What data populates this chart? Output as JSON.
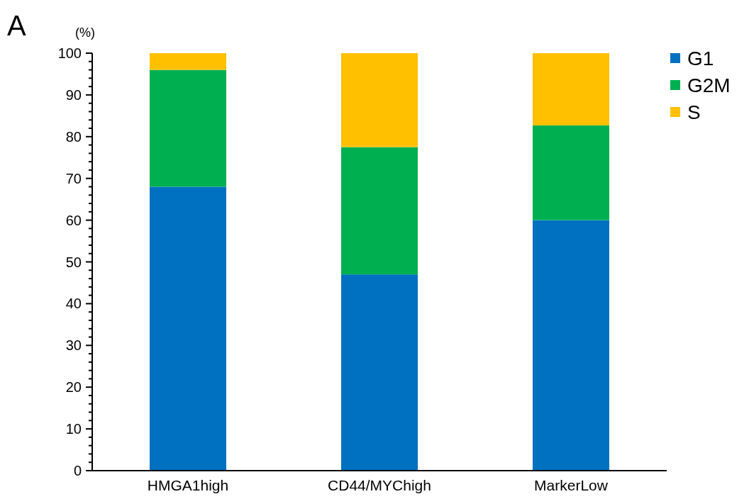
{
  "chart_data": {
    "type": "bar",
    "stacked": true,
    "ylabel": "(%)",
    "annotations": [
      "A"
    ],
    "categories": [
      "HMGA1high",
      "CD44/MYChigh",
      "MarkerLow"
    ],
    "series": [
      {
        "name": "G1",
        "color": "#0070c0",
        "values": [
          68,
          47,
          60
        ]
      },
      {
        "name": "G2M",
        "color": "#00b050",
        "values": [
          28,
          30.5,
          22.7
        ]
      },
      {
        "name": "S",
        "color": "#ffc000",
        "values": [
          4,
          22.5,
          17.3
        ]
      }
    ],
    "ylim": [
      0,
      100
    ],
    "yticks": [
      0,
      {
        "value": 2,
        "label": null
      },
      {
        "value": 4,
        "label": null
      },
      {
        "value": 6,
        "label": null
      },
      {
        "value": 8,
        "label": null
      },
      10,
      {
        "value": 12,
        "label": null
      },
      {
        "value": 14,
        "label": null
      },
      {
        "value": 16,
        "label": null
      },
      {
        "value": 18,
        "label": null
      },
      20,
      {
        "value": 22,
        "label": null
      },
      {
        "value": 24,
        "label": null
      },
      {
        "value": 26,
        "label": null
      },
      {
        "value": 28,
        "label": null
      },
      30,
      {
        "value": 32,
        "label": null
      },
      {
        "value": 34,
        "label": null
      },
      {
        "value": 36,
        "label": null
      },
      {
        "value": 38,
        "label": null
      },
      40,
      {
        "value": 42,
        "label": null
      },
      {
        "value": 44,
        "label": null
      },
      {
        "value": 46,
        "label": null
      },
      {
        "value": 48,
        "label": null
      },
      50,
      {
        "value": 52,
        "label": null
      },
      {
        "value": 54,
        "label": null
      },
      {
        "value": 56,
        "label": null
      },
      {
        "value": 58,
        "label": null
      },
      60,
      {
        "value": 62,
        "label": null
      },
      {
        "value": 64,
        "label": null
      },
      {
        "value": 66,
        "label": null
      },
      {
        "value": 68,
        "label": null
      },
      70,
      {
        "value": 72,
        "label": null
      },
      {
        "value": 74,
        "label": null
      },
      {
        "value": 76,
        "label": null
      },
      {
        "value": 78,
        "label": null
      },
      80,
      {
        "value": 82,
        "label": null
      },
      {
        "value": 84,
        "label": null
      },
      {
        "value": 86,
        "label": null
      },
      {
        "value": 88,
        "label": null
      },
      90,
      {
        "value": 92,
        "label": null
      },
      {
        "value": 94,
        "label": null
      },
      {
        "value": 96,
        "label": null
      },
      {
        "value": 98,
        "label": null
      },
      100
    ],
    "legend": "top right"
  }
}
